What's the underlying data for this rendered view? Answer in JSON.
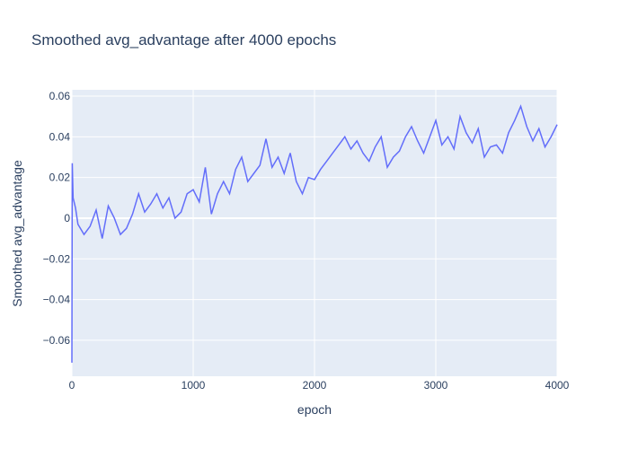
{
  "chart_data": {
    "type": "line",
    "title": "Smoothed avg_advantage after 4000 epochs",
    "x_label": "epoch",
    "y_label": "Smoothed avg_advantage",
    "grid": true,
    "xlim": [
      0,
      4000
    ],
    "xticks": [
      0,
      1000,
      2000,
      3000,
      4000
    ],
    "ylim": [
      -0.0777,
      0.0631
    ],
    "yticks": [
      {
        "value": -0.06,
        "label": "−0.06"
      },
      {
        "value": -0.04,
        "label": "−0.04"
      },
      {
        "value": -0.02,
        "label": "−0.02"
      },
      0,
      0.02,
      0.04,
      0.06
    ],
    "x": [
      0,
      3,
      10,
      30,
      50,
      100,
      150,
      200,
      250,
      300,
      350,
      400,
      450,
      500,
      550,
      600,
      650,
      700,
      750,
      800,
      850,
      900,
      950,
      1000,
      1050,
      1100,
      1150,
      1200,
      1250,
      1300,
      1350,
      1400,
      1450,
      1500,
      1550,
      1600,
      1650,
      1700,
      1750,
      1800,
      1850,
      1900,
      1950,
      2000,
      2050,
      2100,
      2150,
      2200,
      2250,
      2300,
      2350,
      2400,
      2450,
      2500,
      2550,
      2600,
      2650,
      2700,
      2750,
      2800,
      2850,
      2900,
      2950,
      3000,
      3050,
      3100,
      3150,
      3200,
      3250,
      3300,
      3350,
      3400,
      3450,
      3500,
      3550,
      3600,
      3650,
      3700,
      3750,
      3800,
      3850,
      3900,
      3950,
      4000
    ],
    "series": [
      {
        "name": "Smoothed avg_advantage",
        "color": "#636efa",
        "values": [
          -0.071,
          0.027,
          0.01,
          0.005,
          -0.003,
          -0.008,
          -0.004,
          0.004,
          -0.01,
          0.006,
          0.0,
          -0.008,
          -0.005,
          0.002,
          0.012,
          0.003,
          0.007,
          0.012,
          0.005,
          0.01,
          0.0,
          0.003,
          0.012,
          0.014,
          0.008,
          0.025,
          0.002,
          0.012,
          0.018,
          0.012,
          0.024,
          0.03,
          0.018,
          0.022,
          0.026,
          0.039,
          0.025,
          0.03,
          0.022,
          0.032,
          0.018,
          0.012,
          0.02,
          0.019,
          0.024,
          0.028,
          0.032,
          0.036,
          0.04,
          0.034,
          0.038,
          0.032,
          0.028,
          0.035,
          0.04,
          0.025,
          0.03,
          0.033,
          0.04,
          0.045,
          0.038,
          0.032,
          0.04,
          0.048,
          0.036,
          0.04,
          0.034,
          0.05,
          0.042,
          0.037,
          0.044,
          0.03,
          0.035,
          0.036,
          0.032,
          0.042,
          0.048,
          0.055,
          0.045,
          0.038,
          0.044,
          0.035,
          0.04,
          0.046
        ]
      }
    ]
  }
}
